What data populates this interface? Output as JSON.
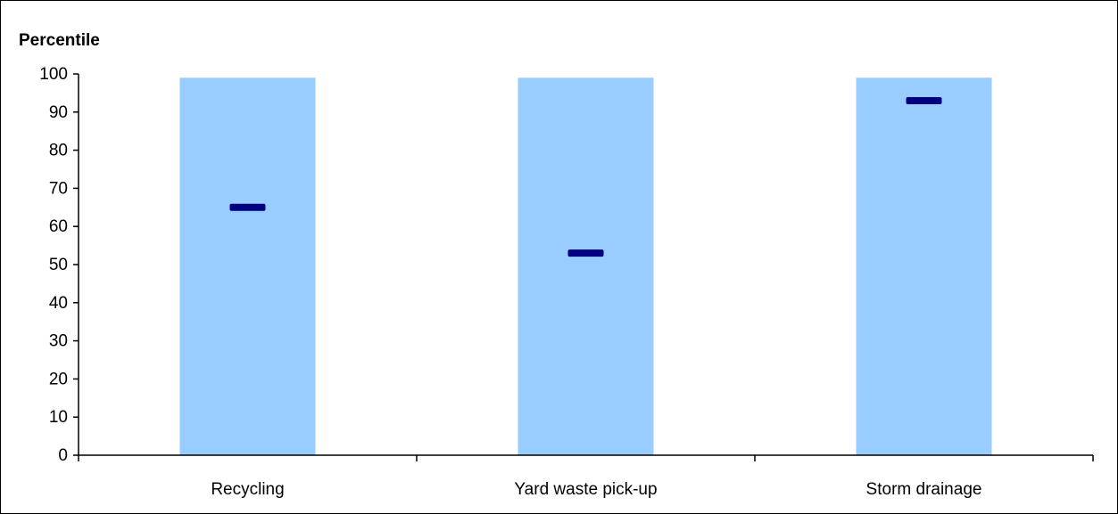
{
  "chart_data": {
    "type": "bar",
    "ylabel": "Percentile",
    "xlabel": "",
    "ylim": [
      0,
      100
    ],
    "yticks": [
      0,
      10,
      20,
      30,
      40,
      50,
      60,
      70,
      80,
      90,
      100
    ],
    "grid": false,
    "categories": [
      "Recycling",
      "Yard waste pick-up",
      "Storm drainage"
    ],
    "series": [
      {
        "name": "",
        "type": "range-bar",
        "low": [
          0,
          0,
          0
        ],
        "high": [
          99,
          99,
          99
        ],
        "color": "#99ccff"
      },
      {
        "name": "",
        "type": "marker",
        "values": [
          65,
          53,
          93
        ],
        "color": "#000080"
      }
    ]
  }
}
